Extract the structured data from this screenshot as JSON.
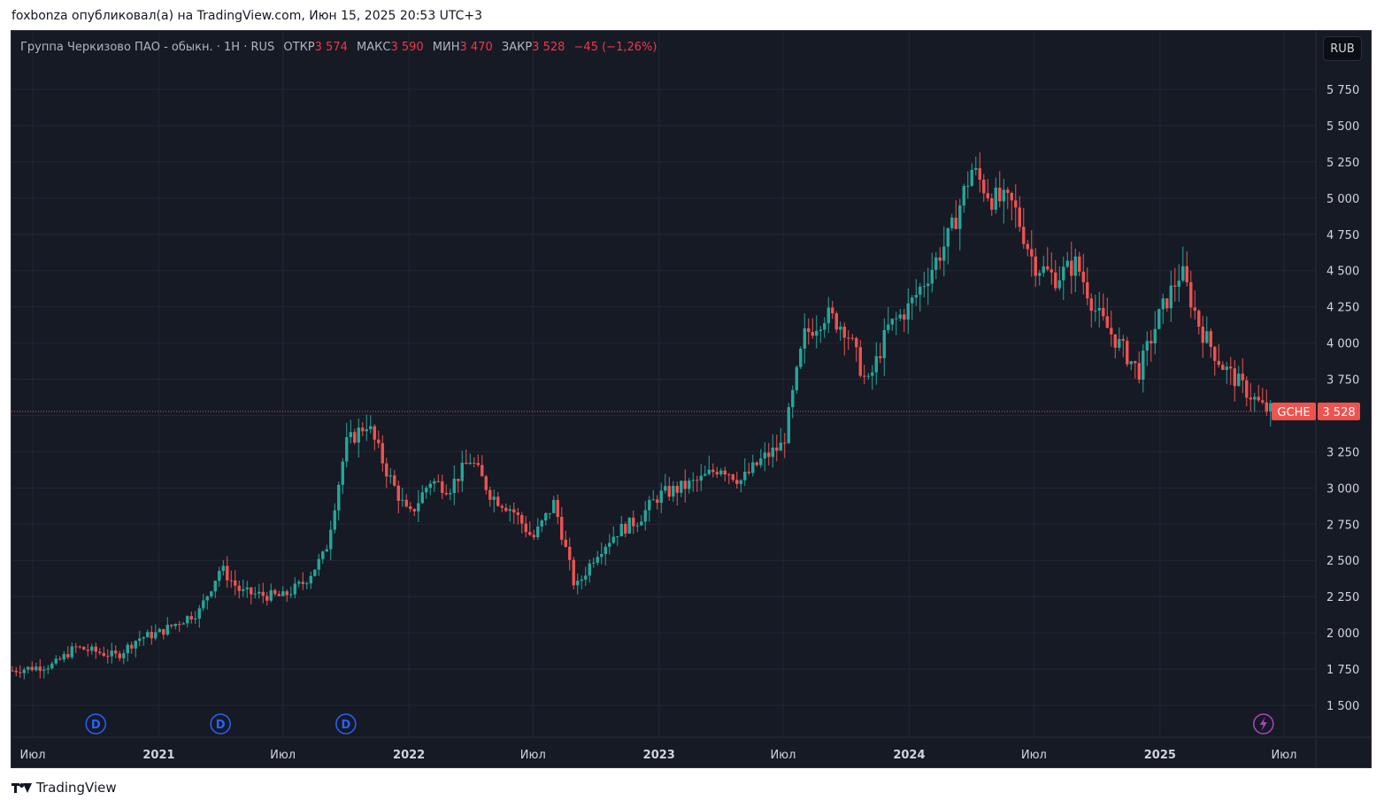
{
  "header": {
    "text": "foxbonza опубликовал(а) на TradingView.com, Июн 15, 2025 20:53 UTC+3"
  },
  "legend": {
    "symbol_text": "Группа Черкизово ПАО - обыкн. · 1Н · RUS",
    "open_label": "ОТКР",
    "open_value": "3 574",
    "high_label": "МАКС",
    "high_value": "3 590",
    "low_label": "МИН",
    "low_value": "3 470",
    "close_label": "ЗАКР",
    "close_value": "3 528",
    "change": "−45 (−1,26%)"
  },
  "currency_button": "RUB",
  "footer": {
    "brand": "TradingView"
  },
  "colors": {
    "up": "#26a69a",
    "down": "#ef5350",
    "background": "#161a25",
    "grid": "#232734",
    "axis_text": "#d1d4dc"
  },
  "chart_data": {
    "type": "candlestick",
    "y_ticks": [
      "5 750",
      "5 500",
      "5 250",
      "5 000",
      "4 750",
      "4 500",
      "4 250",
      "4 000",
      "3 750",
      "3 500",
      "3 250",
      "3 000",
      "2 750",
      "2 500",
      "2 250",
      "2 000",
      "1 750",
      "1 500"
    ],
    "y_values": [
      5750,
      5500,
      5250,
      5000,
      4750,
      4500,
      4250,
      4000,
      3750,
      3500,
      3250,
      3000,
      2750,
      2500,
      2250,
      2000,
      1750,
      1500
    ],
    "ylim": [
      1300,
      6000
    ],
    "x_ticks": [
      "Июл",
      "2021",
      "Июл",
      "2022",
      "Июл",
      "2023",
      "Июл",
      "2024",
      "Июл",
      "2025",
      "Июл"
    ],
    "x_tick_dates": [
      "2020-07",
      "2021-01",
      "2021-07",
      "2022-01",
      "2022-07",
      "2023-01",
      "2023-07",
      "2024-01",
      "2024-07",
      "2025-01",
      "2025-07"
    ],
    "last_price": {
      "symbol": "GCHE",
      "value": "3 528",
      "price": 3528
    },
    "dividend_markers": [
      {
        "label": "D",
        "date": "2020-10"
      },
      {
        "label": "D",
        "date": "2021-04"
      },
      {
        "label": "D",
        "date": "2021-10"
      }
    ],
    "event_marker": {
      "icon": "lightning-icon",
      "date": "2025-06"
    },
    "price_path": [
      [
        "2020-06-01",
        1740
      ],
      [
        "2020-07-01",
        1760
      ],
      [
        "2020-08-01",
        1780
      ],
      [
        "2020-09-01",
        1900
      ],
      [
        "2020-10-01",
        1870
      ],
      [
        "2020-11-01",
        1840
      ],
      [
        "2020-12-01",
        1960
      ],
      [
        "2021-01-01",
        2000
      ],
      [
        "2021-02-01",
        2080
      ],
      [
        "2021-03-01",
        2150
      ],
      [
        "2021-04-01",
        2450
      ],
      [
        "2021-05-01",
        2280
      ],
      [
        "2021-06-01",
        2260
      ],
      [
        "2021-07-01",
        2250
      ],
      [
        "2021-08-01",
        2350
      ],
      [
        "2021-09-01",
        2550
      ],
      [
        "2021-10-01",
        3300
      ],
      [
        "2021-11-01",
        3450
      ],
      [
        "2021-12-01",
        3100
      ],
      [
        "2022-01-01",
        2800
      ],
      [
        "2022-02-01",
        3050
      ],
      [
        "2022-03-01",
        3000
      ],
      [
        "2022-04-01",
        3200
      ],
      [
        "2022-05-01",
        2950
      ],
      [
        "2022-06-01",
        2850
      ],
      [
        "2022-07-01",
        2650
      ],
      [
        "2022-08-01",
        2900
      ],
      [
        "2022-09-01",
        2300
      ],
      [
        "2022-10-01",
        2550
      ],
      [
        "2022-11-01",
        2700
      ],
      [
        "2022-12-01",
        2780
      ],
      [
        "2023-01-01",
        2950
      ],
      [
        "2023-02-01",
        3000
      ],
      [
        "2023-03-01",
        3050
      ],
      [
        "2023-04-01",
        3150
      ],
      [
        "2023-05-01",
        3050
      ],
      [
        "2023-06-01",
        3200
      ],
      [
        "2023-07-01",
        3300
      ],
      [
        "2023-08-01",
        4050
      ],
      [
        "2023-09-01",
        4200
      ],
      [
        "2023-10-01",
        4100
      ],
      [
        "2023-11-01",
        3700
      ],
      [
        "2023-12-01",
        4100
      ],
      [
        "2024-01-01",
        4250
      ],
      [
        "2024-02-01",
        4500
      ],
      [
        "2024-03-01",
        4750
      ],
      [
        "2024-04-01",
        5200
      ],
      [
        "2024-05-01",
        5000
      ],
      [
        "2024-06-01",
        4950
      ],
      [
        "2024-07-01",
        4550
      ],
      [
        "2024-08-01",
        4450
      ],
      [
        "2024-09-01",
        4550
      ],
      [
        "2024-10-01",
        4200
      ],
      [
        "2024-11-01",
        4000
      ],
      [
        "2024-12-01",
        3800
      ],
      [
        "2025-01-01",
        4200
      ],
      [
        "2025-02-01",
        4500
      ],
      [
        "2025-03-01",
        4100
      ],
      [
        "2025-04-01",
        3850
      ],
      [
        "2025-05-01",
        3700
      ],
      [
        "2025-06-01",
        3550
      ],
      [
        "2025-06-15",
        3528
      ]
    ]
  }
}
